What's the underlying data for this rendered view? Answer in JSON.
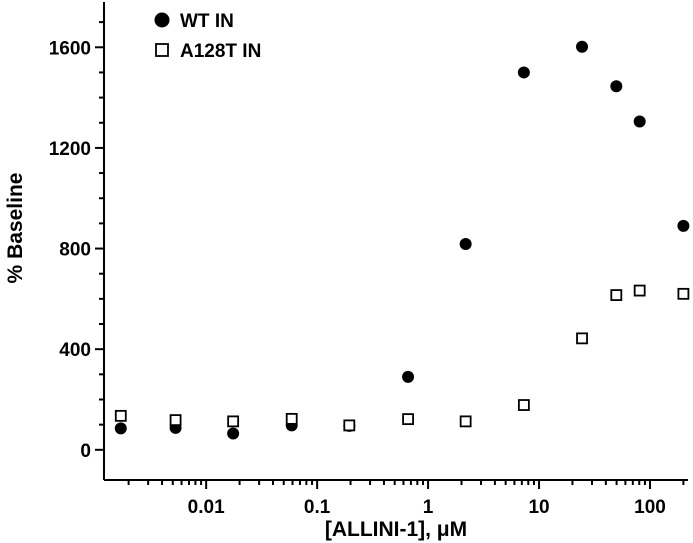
{
  "chart_data": {
    "type": "scatter",
    "xlabel": "[ALLINI-1], μM",
    "ylabel": "% Baseline",
    "xscale": "log",
    "xlim": [
      0.0012,
      220
    ],
    "ylim": [
      -120,
      1780
    ],
    "x_ticks": [
      0.01,
      0.1,
      1,
      10,
      100
    ],
    "x_tick_labels": [
      "0.01",
      "0.1",
      "1",
      "10",
      "100"
    ],
    "y_ticks": [
      0,
      400,
      800,
      1200,
      1600
    ],
    "y_tick_labels": [
      "0",
      "400",
      "800",
      "1200",
      "1600"
    ],
    "grid": false,
    "legend_position": "top-left",
    "series": [
      {
        "name": "WT IN",
        "marker": "filled-circle",
        "color": "#000000",
        "points": [
          {
            "x": 0.0017,
            "y": 85
          },
          {
            "x": 0.0053,
            "y": 87
          },
          {
            "x": 0.0175,
            "y": 65
          },
          {
            "x": 0.059,
            "y": 97
          },
          {
            "x": 0.195,
            "y": 95
          },
          {
            "x": 0.66,
            "y": 290
          },
          {
            "x": 2.18,
            "y": 818
          },
          {
            "x": 7.3,
            "y": 1500
          },
          {
            "x": 24.4,
            "y": 1602
          },
          {
            "x": 49.7,
            "y": 1445
          },
          {
            "x": 80.7,
            "y": 1305
          },
          {
            "x": 200,
            "y": 890
          }
        ]
      },
      {
        "name": "A128T IN",
        "marker": "open-square",
        "color": "#000000",
        "points": [
          {
            "x": 0.0017,
            "y": 135
          },
          {
            "x": 0.0053,
            "y": 118
          },
          {
            "x": 0.0175,
            "y": 113
          },
          {
            "x": 0.059,
            "y": 123
          },
          {
            "x": 0.195,
            "y": 97
          },
          {
            "x": 0.66,
            "y": 122
          },
          {
            "x": 2.18,
            "y": 113
          },
          {
            "x": 7.3,
            "y": 178
          },
          {
            "x": 24.4,
            "y": 443
          },
          {
            "x": 49.7,
            "y": 615
          },
          {
            "x": 80.7,
            "y": 633
          },
          {
            "x": 200,
            "y": 620
          }
        ]
      }
    ]
  }
}
